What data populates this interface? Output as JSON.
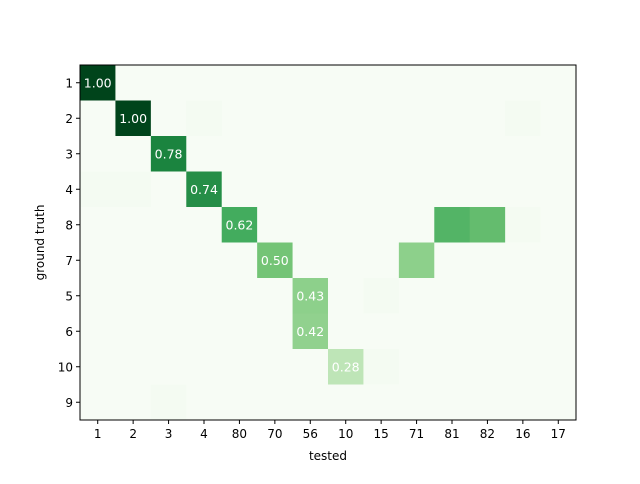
{
  "chart_data": {
    "type": "heatmap",
    "title": "",
    "xlabel": "tested",
    "ylabel": "ground truth",
    "x_categories": [
      "1",
      "2",
      "3",
      "4",
      "80",
      "70",
      "56",
      "10",
      "15",
      "71",
      "81",
      "82",
      "16",
      "17"
    ],
    "y_categories": [
      "1",
      "2",
      "3",
      "4",
      "8",
      "7",
      "5",
      "6",
      "10",
      "9"
    ],
    "colormap": "Greens",
    "vmin": 0,
    "vmax": 1,
    "values": [
      [
        1.0,
        0,
        0,
        0,
        0,
        0,
        0,
        0,
        0,
        0,
        0,
        0,
        0,
        0
      ],
      [
        0,
        1.0,
        0,
        0.02,
        0,
        0,
        0,
        0,
        0,
        0,
        0,
        0,
        0.02,
        0
      ],
      [
        0,
        0,
        0.78,
        0,
        0,
        0,
        0,
        0,
        0,
        0,
        0,
        0,
        0,
        0
      ],
      [
        0.02,
        0.02,
        0,
        0.74,
        0,
        0,
        0,
        0,
        0,
        0,
        0,
        0,
        0,
        0
      ],
      [
        0,
        0,
        0,
        0,
        0.62,
        0,
        0,
        0,
        0,
        0,
        0.58,
        0.54,
        0.02,
        0
      ],
      [
        0,
        0,
        0,
        0,
        0,
        0.5,
        0,
        0,
        0,
        0.43,
        0,
        0,
        0,
        0
      ],
      [
        0,
        0,
        0,
        0,
        0,
        0,
        0.43,
        0,
        0.02,
        0,
        0,
        0,
        0,
        0
      ],
      [
        0,
        0,
        0,
        0,
        0,
        0,
        0.42,
        0,
        0,
        0,
        0,
        0,
        0,
        0
      ],
      [
        0,
        0,
        0,
        0,
        0,
        0,
        0,
        0.28,
        0.02,
        0,
        0,
        0,
        0,
        0
      ],
      [
        0,
        0,
        0.02,
        0,
        0,
        0,
        0,
        0,
        0,
        0,
        0,
        0,
        0,
        0
      ]
    ],
    "annotations": [
      {
        "row": 0,
        "col": 0,
        "text": "1.00"
      },
      {
        "row": 1,
        "col": 1,
        "text": "1.00"
      },
      {
        "row": 2,
        "col": 2,
        "text": "0.78"
      },
      {
        "row": 3,
        "col": 3,
        "text": "0.74"
      },
      {
        "row": 4,
        "col": 4,
        "text": "0.62"
      },
      {
        "row": 5,
        "col": 5,
        "text": "0.50"
      },
      {
        "row": 6,
        "col": 6,
        "text": "0.43"
      },
      {
        "row": 7,
        "col": 6,
        "text": "0.42"
      },
      {
        "row": 8,
        "col": 7,
        "text": "0.28"
      }
    ],
    "annotation_color": "#ffffff",
    "grid": false
  }
}
